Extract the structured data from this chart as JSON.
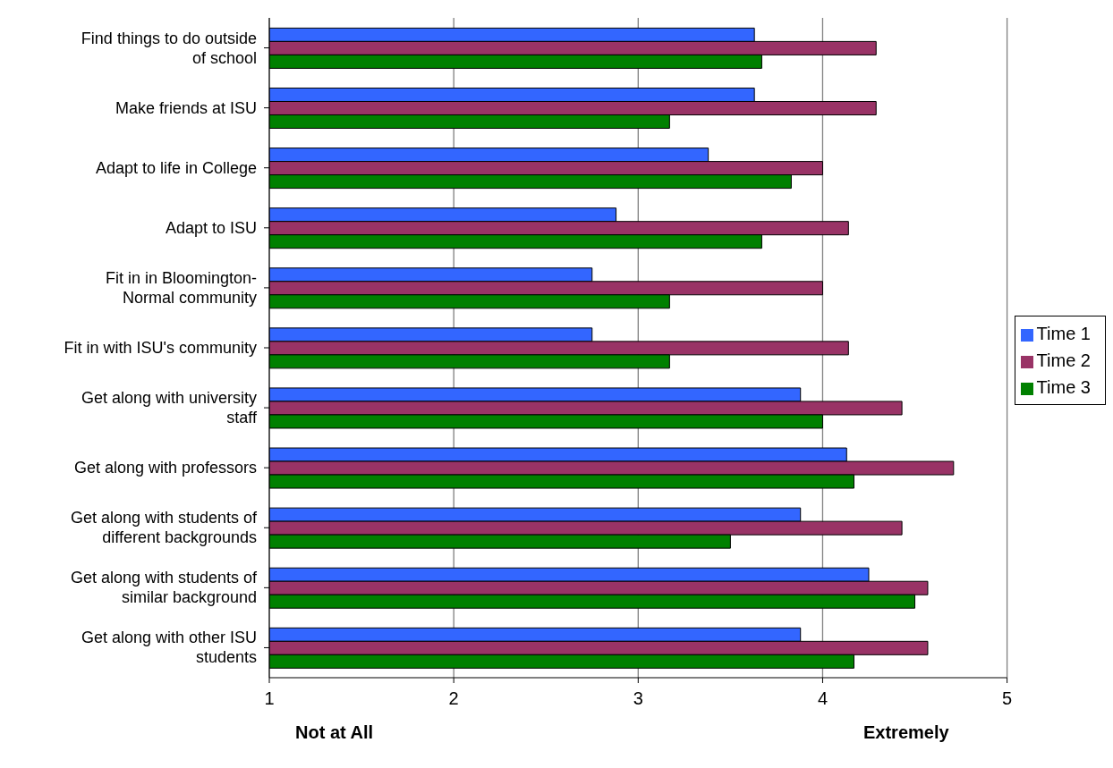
{
  "chart_data": {
    "type": "bar",
    "orientation": "horizontal",
    "categories": [
      "Find things to do outside of school",
      "Make friends at ISU",
      "Adapt to life in College",
      "Adapt to ISU",
      "Fit in in Bloomington-Normal community",
      "Fit in with ISU's community",
      "Get along with university staff",
      "Get along with professors",
      "Get along with students of different backgrounds",
      "Get along with students of similar background",
      "Get along with other ISU students"
    ],
    "series": [
      {
        "name": "Time 1",
        "color": "#3366ff",
        "values": [
          3.63,
          3.63,
          3.38,
          2.88,
          2.75,
          2.75,
          3.88,
          4.13,
          3.88,
          4.25,
          3.88
        ]
      },
      {
        "name": "Time 2",
        "color": "#993366",
        "values": [
          4.29,
          4.29,
          4.0,
          4.14,
          4.0,
          4.14,
          4.43,
          4.71,
          4.43,
          4.57,
          4.57
        ]
      },
      {
        "name": "Time 3",
        "color": "#008000",
        "values": [
          3.67,
          3.17,
          3.83,
          3.67,
          3.17,
          3.17,
          4.0,
          4.17,
          3.5,
          4.5,
          4.17
        ]
      }
    ],
    "xlim": [
      1,
      5
    ],
    "xticks": [
      1,
      2,
      3,
      4,
      5
    ],
    "grid": "x",
    "legend": "right",
    "annotations": [
      "Not at All",
      "Extremely"
    ]
  }
}
